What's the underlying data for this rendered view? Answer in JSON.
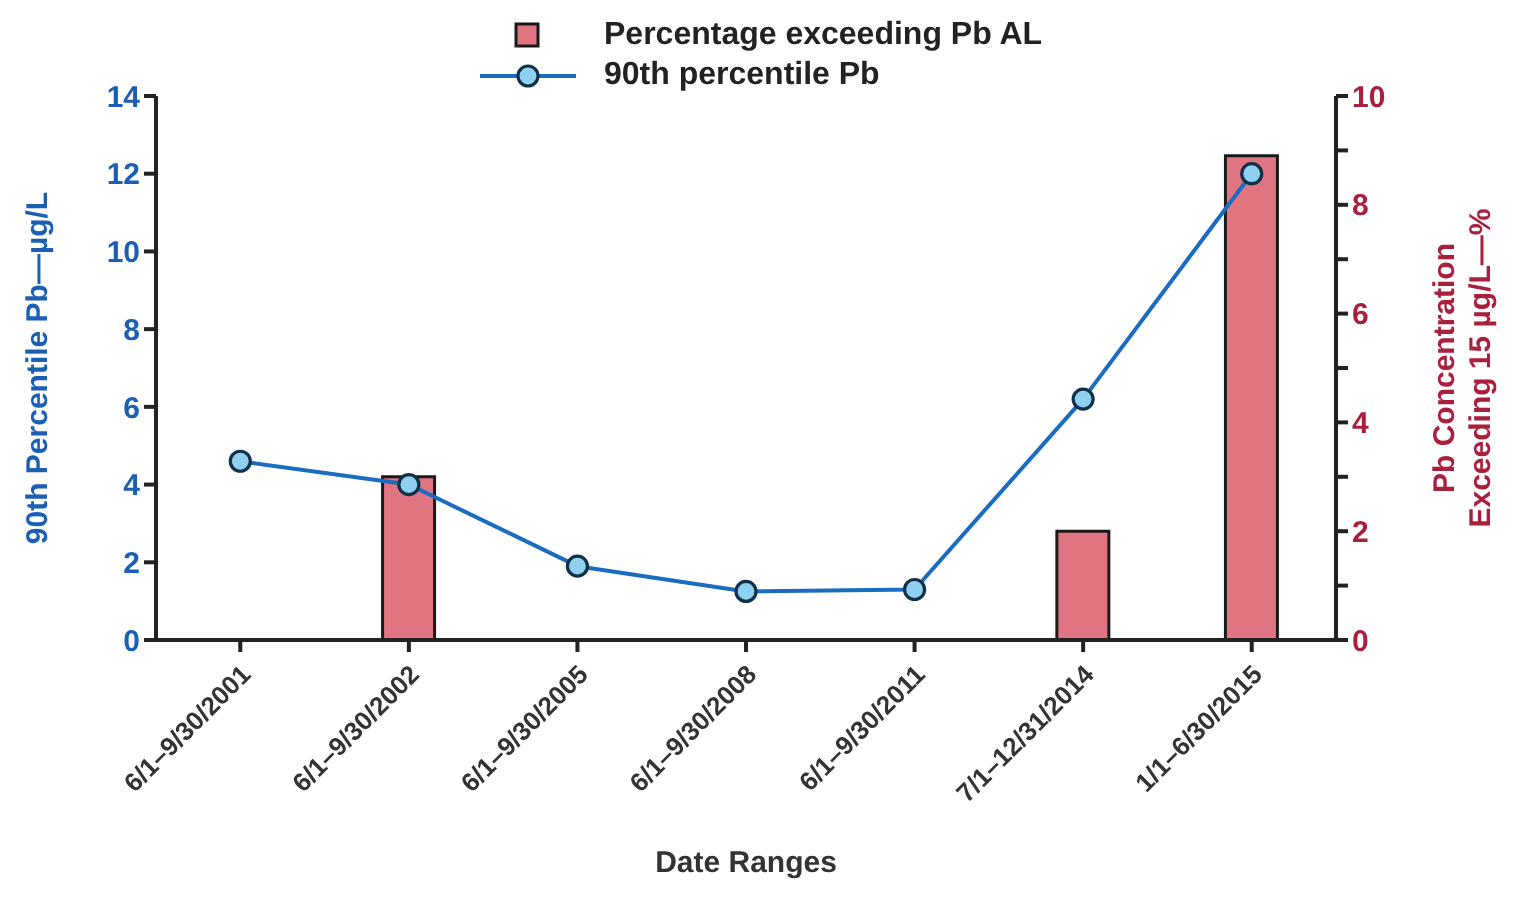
{
  "chart_data": {
    "type": "bar",
    "xlabel": "Date Ranges",
    "ylabel": "90th Percentile Pb—µg/L",
    "y2label": "Pb Concentration\nExceeding 15 µg/L—%",
    "categories": [
      "6/1–9/30/2001",
      "6/1–9/30/2002",
      "6/1–9/30/2005",
      "6/1–9/30/2008",
      "6/1–9/30/2011",
      "7/1–12/31/2014",
      "1/1–6/30/2015"
    ],
    "series": [
      {
        "name": "Percentage exceeding Pb AL",
        "axis": "y2",
        "color": "#e07480",
        "values": [
          0,
          3.0,
          0,
          0,
          0,
          2.0,
          8.9
        ]
      },
      {
        "name": "90th percentile Pb",
        "type": "line",
        "axis": "y",
        "color": "#1a6cc0",
        "marker": "circle",
        "values": [
          4.6,
          4.0,
          1.9,
          1.25,
          1.3,
          6.2,
          12.0
        ]
      }
    ],
    "ylim": [
      0,
      14
    ],
    "yticks": [
      0,
      2,
      4,
      6,
      8,
      10,
      12,
      14
    ],
    "y2lim": [
      0,
      10
    ],
    "y2ticks": [
      0,
      {
        "value": 1,
        "label": null
      },
      2,
      {
        "value": 3,
        "label": null
      },
      4,
      {
        "value": 5,
        "label": null
      },
      6,
      {
        "value": 7,
        "label": null
      },
      8,
      {
        "value": 9,
        "label": null
      },
      10
    ],
    "legend": "top left",
    "grid": false
  }
}
